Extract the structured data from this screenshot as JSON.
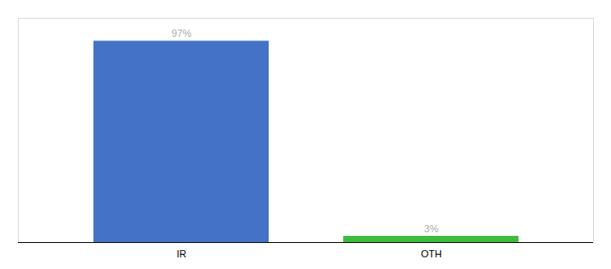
{
  "chart_data": {
    "type": "bar",
    "categories": [
      "IR",
      "OTH"
    ],
    "values": [
      97,
      3
    ],
    "value_labels": [
      "97%",
      "3%"
    ],
    "colors": [
      "#4472c4",
      "#3dbb3d"
    ],
    "ylim": [
      0,
      108
    ],
    "data_labels": true,
    "tick_labels": "x"
  }
}
